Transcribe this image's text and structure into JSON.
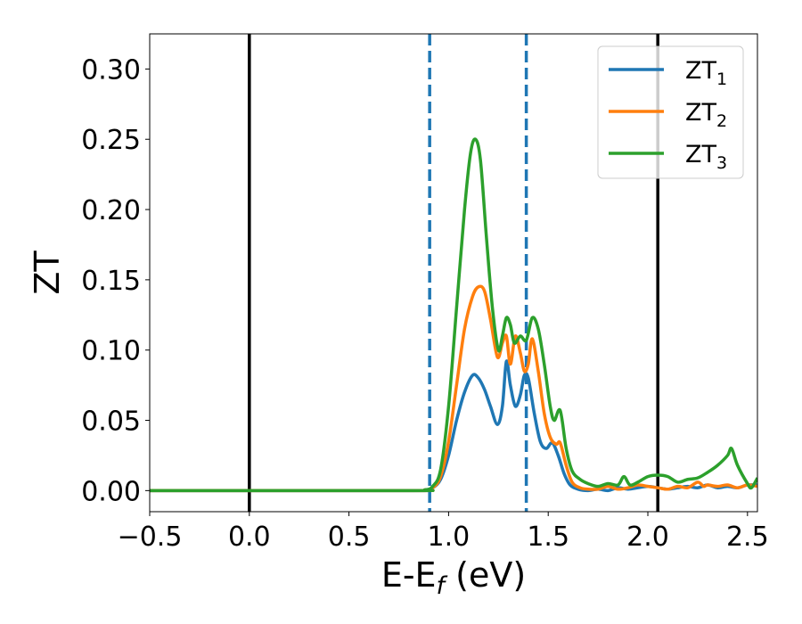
{
  "chart_data": {
    "type": "line",
    "title": "",
    "xlabel": {
      "main": "E-E",
      "sub": "f",
      "suffix": " (eV)"
    },
    "ylabel": "ZT",
    "xlim": [
      -0.5,
      2.55
    ],
    "ylim": [
      -0.015,
      0.325
    ],
    "x_ticks": [
      -0.5,
      0.0,
      0.5,
      1.0,
      1.5,
      2.0,
      2.5
    ],
    "x_tick_labels": [
      "−0.5",
      "0.0",
      "0.5",
      "1.0",
      "1.5",
      "2.0",
      "2.5"
    ],
    "y_ticks": [
      0.0,
      0.05,
      0.1,
      0.15,
      0.2,
      0.25,
      0.3
    ],
    "y_tick_labels": [
      "0.00",
      "0.05",
      "0.10",
      "0.15",
      "0.20",
      "0.25",
      "0.30"
    ],
    "grid": false,
    "legend_position": "top-right",
    "vertical_lines": [
      {
        "x": 0.0,
        "style": "solid",
        "color": "#000000"
      },
      {
        "x": 2.05,
        "style": "solid",
        "color": "#000000"
      },
      {
        "x": 0.905,
        "style": "dashed",
        "color": "#1f77b4"
      },
      {
        "x": 1.39,
        "style": "dashed",
        "color": "#1f77b4"
      }
    ],
    "series": [
      {
        "name": "ZT",
        "name_sub": "1",
        "color": "#1f77b4",
        "x": [
          -0.5,
          0.8,
          0.88,
          0.92,
          0.96,
          1.0,
          1.04,
          1.08,
          1.12,
          1.15,
          1.18,
          1.21,
          1.245,
          1.27,
          1.29,
          1.31,
          1.335,
          1.36,
          1.38,
          1.4,
          1.43,
          1.46,
          1.49,
          1.52,
          1.55,
          1.58,
          1.61,
          1.65,
          1.7,
          1.75,
          1.8,
          1.85,
          1.9,
          1.95,
          2.0,
          2.05,
          2.1,
          2.15,
          2.2,
          2.25,
          2.3,
          2.35,
          2.4,
          2.45,
          2.5,
          2.55
        ],
        "y": [
          0.0,
          0.0,
          0.0005,
          0.002,
          0.008,
          0.025,
          0.05,
          0.07,
          0.082,
          0.08,
          0.072,
          0.06,
          0.047,
          0.06,
          0.092,
          0.075,
          0.06,
          0.068,
          0.082,
          0.08,
          0.055,
          0.035,
          0.03,
          0.034,
          0.025,
          0.012,
          0.004,
          0.001,
          0.0,
          0.001,
          0.0,
          0.002,
          0.001,
          0.002,
          0.003,
          0.002,
          0.001,
          0.002,
          0.003,
          0.002,
          0.004,
          0.002,
          0.003,
          0.002,
          0.004,
          0.004
        ]
      },
      {
        "name": "ZT",
        "name_sub": "2",
        "color": "#ff7f0e",
        "x": [
          -0.5,
          0.8,
          0.88,
          0.92,
          0.96,
          1.0,
          1.04,
          1.08,
          1.12,
          1.15,
          1.18,
          1.21,
          1.245,
          1.27,
          1.29,
          1.31,
          1.335,
          1.36,
          1.38,
          1.4,
          1.42,
          1.45,
          1.48,
          1.51,
          1.54,
          1.56,
          1.59,
          1.62,
          1.66,
          1.7,
          1.75,
          1.8,
          1.85,
          1.9,
          1.95,
          2.0,
          2.05,
          2.1,
          2.15,
          2.2,
          2.25,
          2.28,
          2.3,
          2.35,
          2.4,
          2.45,
          2.5,
          2.55
        ],
        "y": [
          0.0,
          0.0,
          0.0005,
          0.002,
          0.01,
          0.035,
          0.075,
          0.115,
          0.138,
          0.145,
          0.142,
          0.122,
          0.095,
          0.105,
          0.11,
          0.09,
          0.11,
          0.098,
          0.085,
          0.09,
          0.108,
          0.085,
          0.055,
          0.038,
          0.033,
          0.034,
          0.018,
          0.006,
          0.002,
          0.001,
          0.001,
          0.003,
          0.001,
          0.002,
          0.004,
          0.003,
          0.002,
          0.001,
          0.003,
          0.002,
          0.006,
          0.003,
          0.004,
          0.003,
          0.004,
          0.002,
          0.004,
          0.003
        ]
      },
      {
        "name": "ZT",
        "name_sub": "3",
        "color": "#2ca02c",
        "x": [
          -0.5,
          0.8,
          0.88,
          0.92,
          0.96,
          1.0,
          1.04,
          1.08,
          1.11,
          1.135,
          1.16,
          1.19,
          1.22,
          1.25,
          1.27,
          1.29,
          1.31,
          1.33,
          1.36,
          1.39,
          1.42,
          1.45,
          1.48,
          1.51,
          1.53,
          1.56,
          1.59,
          1.62,
          1.66,
          1.7,
          1.75,
          1.8,
          1.85,
          1.88,
          1.91,
          1.95,
          2.0,
          2.05,
          2.1,
          2.15,
          2.2,
          2.25,
          2.3,
          2.35,
          2.4,
          2.42,
          2.45,
          2.5,
          2.52,
          2.55
        ],
        "y": [
          0.0,
          0.0,
          0.0005,
          0.003,
          0.015,
          0.06,
          0.13,
          0.2,
          0.24,
          0.25,
          0.235,
          0.18,
          0.13,
          0.1,
          0.11,
          0.123,
          0.118,
          0.105,
          0.11,
          0.107,
          0.123,
          0.115,
          0.09,
          0.06,
          0.05,
          0.057,
          0.03,
          0.014,
          0.008,
          0.005,
          0.003,
          0.005,
          0.004,
          0.01,
          0.004,
          0.006,
          0.01,
          0.011,
          0.01,
          0.006,
          0.008,
          0.009,
          0.013,
          0.018,
          0.025,
          0.03,
          0.018,
          0.005,
          0.002,
          0.009
        ]
      }
    ]
  }
}
